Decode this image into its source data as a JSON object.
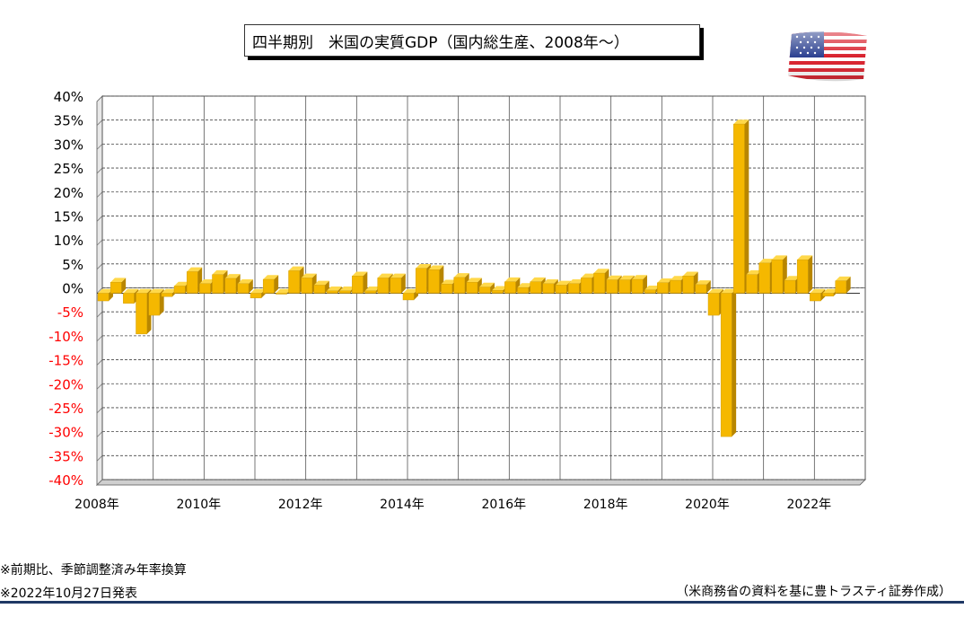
{
  "title": "四半期別　米国の実質GDP（国内総生産、2008年～）",
  "flag_icon": "us-flag-icon",
  "notes": {
    "line1": "※前期比、季節調整済み年率換算",
    "line2": "※2022年10月27日発表"
  },
  "source": "（米商務省の資料を基に豊トラスティ証券作成）",
  "colors": {
    "bar": "#f5b800",
    "bar_side": "#b88600",
    "bar_top": "#ffd84a",
    "negative_label": "#ff0000",
    "rule": "#1f3864"
  },
  "chart_data": {
    "type": "bar",
    "title": "四半期別　米国の実質GDP（国内総生産、2008年～）",
    "xlabel": "",
    "ylabel": "",
    "ylim": [
      -40,
      40
    ],
    "y_ticks": [
      "40%",
      "35%",
      "30%",
      "25%",
      "20%",
      "15%",
      "10%",
      "5%",
      "0%",
      "-5%",
      "-10%",
      "-15%",
      "-20%",
      "-25%",
      "-30%",
      "-35%",
      "-40%"
    ],
    "x_tick_labels": [
      "2008年",
      "2010年",
      "2012年",
      "2014年",
      "2016年",
      "2018年",
      "2020年",
      "2022年"
    ],
    "grid": true,
    "categories": [
      "2008Q1",
      "2008Q2",
      "2008Q3",
      "2008Q4",
      "2009Q1",
      "2009Q2",
      "2009Q3",
      "2009Q4",
      "2010Q1",
      "2010Q2",
      "2010Q3",
      "2010Q4",
      "2011Q1",
      "2011Q2",
      "2011Q3",
      "2011Q4",
      "2012Q1",
      "2012Q2",
      "2012Q3",
      "2012Q4",
      "2013Q1",
      "2013Q2",
      "2013Q3",
      "2013Q4",
      "2014Q1",
      "2014Q2",
      "2014Q3",
      "2014Q4",
      "2015Q1",
      "2015Q2",
      "2015Q3",
      "2015Q4",
      "2016Q1",
      "2016Q2",
      "2016Q3",
      "2016Q4",
      "2017Q1",
      "2017Q2",
      "2017Q3",
      "2017Q4",
      "2018Q1",
      "2018Q2",
      "2018Q3",
      "2018Q4",
      "2019Q1",
      "2019Q2",
      "2019Q3",
      "2019Q4",
      "2020Q1",
      "2020Q2",
      "2020Q3",
      "2020Q4",
      "2021Q1",
      "2021Q2",
      "2021Q3",
      "2021Q4",
      "2022Q1",
      "2022Q2",
      "2022Q3"
    ],
    "values": [
      -1.6,
      2.3,
      -2.1,
      -8.5,
      -4.6,
      -0.7,
      1.5,
      4.5,
      2.0,
      3.9,
      3.1,
      2.0,
      -1.0,
      2.9,
      -0.1,
      4.7,
      3.2,
      1.7,
      0.5,
      0.5,
      3.6,
      0.5,
      3.2,
      3.2,
      -1.4,
      5.2,
      4.9,
      1.9,
      3.3,
      2.3,
      1.3,
      0.6,
      2.4,
      1.2,
      2.4,
      2.0,
      1.7,
      2.0,
      3.2,
      4.2,
      2.8,
      2.8,
      2.9,
      0.7,
      2.2,
      2.7,
      3.6,
      1.8,
      -4.6,
      -29.9,
      35.3,
      3.9,
      6.3,
      7.0,
      2.7,
      7.0,
      -1.6,
      -0.6,
      2.6
    ]
  }
}
